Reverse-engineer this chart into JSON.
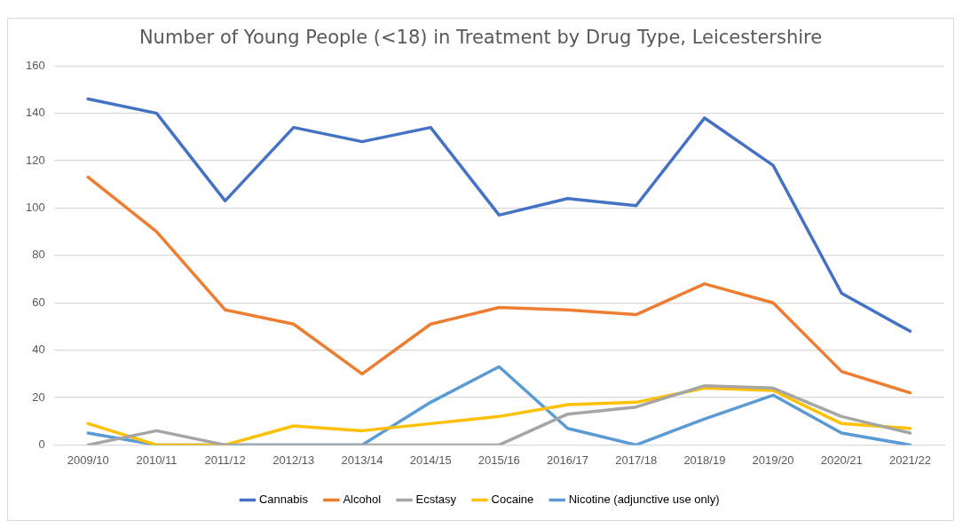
{
  "chart_data": {
    "type": "line",
    "title": "Number of Young People (<18) in Treatment by Drug Type, Leicestershire",
    "categories": [
      "2009/10",
      "2010/11",
      "2011/12",
      "2012/13",
      "2013/14",
      "2014/15",
      "2015/16",
      "2016/17",
      "2017/18",
      "2018/19",
      "2019/20",
      "2020/21",
      "2021/22"
    ],
    "series": [
      {
        "name": "Cannabis",
        "color": "#4472c4",
        "values": [
          146,
          140,
          103,
          134,
          128,
          134,
          97,
          104,
          101,
          138,
          118,
          64,
          48
        ]
      },
      {
        "name": "Alcohol",
        "color": "#ed7d31",
        "values": [
          113,
          90,
          57,
          51,
          30,
          51,
          58,
          57,
          55,
          68,
          60,
          31,
          22
        ]
      },
      {
        "name": "Ecstasy",
        "color": "#a5a5a5",
        "values": [
          0,
          6,
          0,
          0,
          0,
          0,
          0,
          13,
          16,
          25,
          24,
          12,
          5
        ]
      },
      {
        "name": "Cocaine",
        "color": "#ffc000",
        "values": [
          9,
          0,
          0,
          8,
          6,
          9,
          12,
          17,
          18,
          24,
          23,
          9,
          7
        ]
      },
      {
        "name": "Nicotine (adjunctive use only)",
        "color": "#5b9bd5",
        "values": [
          5,
          0,
          0,
          0,
          0,
          18,
          33,
          7,
          0,
          11,
          21,
          5,
          0
        ]
      }
    ],
    "ylim": [
      0,
      160
    ],
    "yticks": [
      0,
      20,
      40,
      60,
      80,
      100,
      120,
      140,
      160
    ],
    "grid": "y",
    "legend": "bottom",
    "marker": "none",
    "line_style": "solid"
  }
}
